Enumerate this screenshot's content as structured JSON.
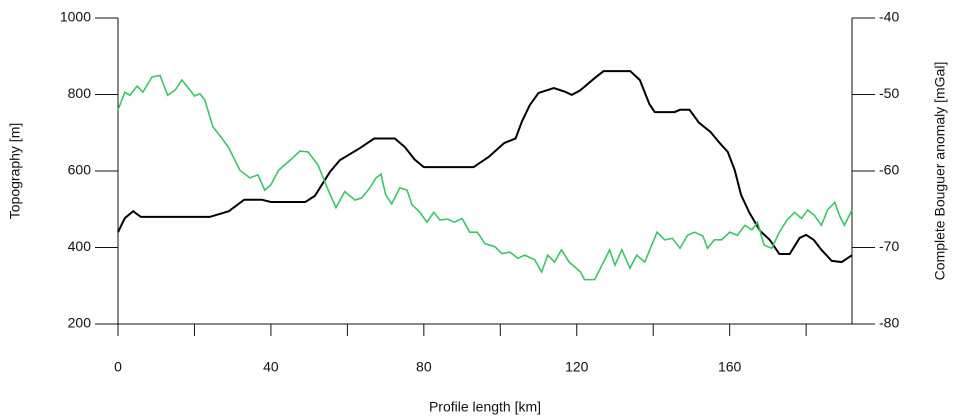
{
  "chart_data": {
    "type": "line",
    "xlabel": "Profile length [km]",
    "ylabel": "Topography [m]",
    "y2label": "Complete Bouguer anomaly [mGal]",
    "xlim": [
      0,
      192
    ],
    "xticks": [
      0,
      40,
      80,
      120,
      160
    ],
    "ylim": [
      200,
      1000
    ],
    "yticks": [
      200,
      400,
      600,
      800,
      1000
    ],
    "y2lim": [
      -80,
      -40
    ],
    "y2ticks": [
      -80,
      -70,
      -60,
      -50,
      -40
    ],
    "series": [
      {
        "color": "#000000",
        "axis": "y",
        "x": [
          0,
          1.8,
          4,
          5,
          6,
          24,
          29,
          33,
          37.6,
          40,
          49,
          51.5,
          55.4,
          58,
          63.3,
          67,
          72.4,
          75,
          77.6,
          80,
          93,
          97,
          101,
          104,
          105.6,
          107.7,
          110,
          114,
          117,
          118.7,
          120.8,
          124.7,
          127,
          134,
          136.5,
          139,
          140.4,
          145.6,
          147,
          149.5,
          152,
          155,
          157.4,
          159.5,
          161.3,
          163,
          165.2,
          168,
          170.5,
          173,
          175.7,
          178.3,
          180,
          182,
          184,
          186.7,
          189.3,
          192
        ],
        "values": [
          440,
          477,
          495,
          487,
          480,
          480,
          495,
          525,
          525,
          519,
          519,
          535,
          597,
          628,
          660,
          685,
          685,
          663,
          630,
          610,
          610,
          637,
          673,
          685,
          728,
          772,
          804,
          817,
          807,
          799,
          810,
          843,
          861,
          861,
          838,
          775,
          754,
          754,
          760,
          760,
          726,
          702,
          673,
          650,
          603,
          537,
          490,
          443,
          420,
          383,
          383,
          425,
          433,
          420,
          394,
          365,
          362,
          380
        ]
      },
      {
        "color": "#3dc46a",
        "axis": "y2",
        "x": [
          0,
          1,
          1.8,
          3.1,
          5,
          6.5,
          8.9,
          11,
          13,
          15,
          16.7,
          18.8,
          20,
          21.4,
          22.7,
          24.8,
          27,
          29,
          31.9,
          34.5,
          36.6,
          38.4,
          40,
          42,
          45,
          47.6,
          49.7,
          52.3,
          55,
          57,
          59.3,
          62,
          63.8,
          65.9,
          67.5,
          68.8,
          70,
          71.6,
          73.7,
          75.6,
          76.9,
          79,
          80.8,
          82.6,
          84.2,
          86.3,
          88,
          90,
          92,
          94,
          96,
          98.6,
          100.4,
          102.5,
          104.6,
          106.4,
          109,
          110.8,
          112.4,
          114.2,
          116,
          118,
          121,
          122,
          124.7,
          127.3,
          128.6,
          130,
          131.8,
          133.9,
          135.7,
          137.8,
          139.6,
          141,
          143,
          145,
          147,
          149,
          150.8,
          153,
          154.2,
          156,
          157.9,
          160,
          162,
          164,
          165.8,
          167.3,
          169,
          171,
          173,
          175,
          177,
          178.8,
          180.4,
          182.2,
          184,
          185.6,
          187.5,
          188.8,
          190,
          192
        ],
        "values": [
          -52.0,
          -50.7,
          -49.7,
          -50.1,
          -48.9,
          -49.7,
          -47.7,
          -47.5,
          -50.1,
          -49.4,
          -48.1,
          -49.4,
          -50.2,
          -49.9,
          -50.7,
          -54.2,
          -55.6,
          -57.0,
          -59.9,
          -60.9,
          -60.5,
          -62.5,
          -61.8,
          -59.9,
          -58.6,
          -57.4,
          -57.5,
          -59.2,
          -62.5,
          -64.8,
          -62.7,
          -63.8,
          -63.5,
          -62.2,
          -60.9,
          -60.4,
          -63.1,
          -64.3,
          -62.2,
          -62.5,
          -64.4,
          -65.4,
          -66.7,
          -65.4,
          -66.4,
          -66.3,
          -66.7,
          -66.2,
          -68.0,
          -68.0,
          -69.5,
          -69.9,
          -70.8,
          -70.6,
          -71.4,
          -71.0,
          -71.6,
          -73.2,
          -71.0,
          -71.9,
          -70.3,
          -71.9,
          -73.2,
          -74.2,
          -74.2,
          -71.6,
          -70.3,
          -72.3,
          -70.3,
          -72.7,
          -71.0,
          -71.9,
          -69.7,
          -68.0,
          -69.0,
          -68.8,
          -70.1,
          -68.4,
          -68.0,
          -68.5,
          -70.1,
          -69.0,
          -69.0,
          -68.0,
          -68.4,
          -67.1,
          -67.7,
          -66.7,
          -69.7,
          -70.1,
          -68.0,
          -66.4,
          -65.4,
          -66.2,
          -65.1,
          -65.8,
          -67.1,
          -65.1,
          -64.1,
          -65.9,
          -67.1,
          -65.1
        ]
      }
    ]
  }
}
